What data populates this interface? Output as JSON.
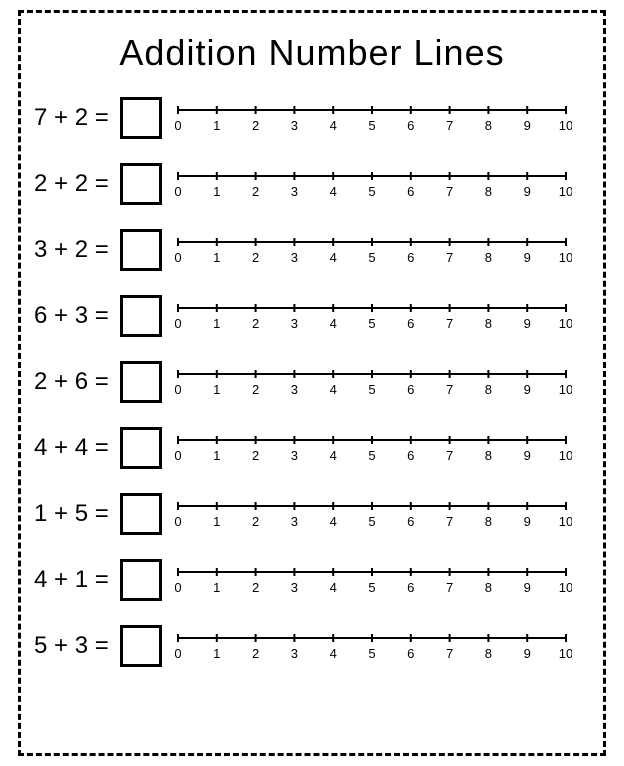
{
  "title": "Addition Number Lines",
  "title_fontsize": 36,
  "title_font": "Comic Sans MS",
  "equation_fontsize": 24,
  "numberline_label_fontsize": 13,
  "border": {
    "style": "dashed",
    "width": 3,
    "color": "#000000"
  },
  "answer_box": {
    "size": 42,
    "border_width": 3,
    "border_color": "#000000"
  },
  "background_color": "#ffffff",
  "text_color": "#000000",
  "numberline": {
    "min": 0,
    "max": 10,
    "tick_step": 1,
    "labels": [
      "0",
      "1",
      "2",
      "3",
      "4",
      "5",
      "6",
      "7",
      "8",
      "9",
      "10"
    ],
    "line_width": 2,
    "tick_height": 8,
    "line_color": "#000000"
  },
  "problems": [
    {
      "a": 7,
      "b": 2,
      "text": "7 + 2 ="
    },
    {
      "a": 2,
      "b": 2,
      "text": "2 + 2 ="
    },
    {
      "a": 3,
      "b": 2,
      "text": "3 + 2 ="
    },
    {
      "a": 6,
      "b": 3,
      "text": "6 + 3 ="
    },
    {
      "a": 2,
      "b": 6,
      "text": "2 + 6 ="
    },
    {
      "a": 4,
      "b": 4,
      "text": "4 + 4 ="
    },
    {
      "a": 1,
      "b": 5,
      "text": "1 + 5 ="
    },
    {
      "a": 4,
      "b": 1,
      "text": "4 + 1 ="
    },
    {
      "a": 5,
      "b": 3,
      "text": "5 + 3 ="
    }
  ]
}
